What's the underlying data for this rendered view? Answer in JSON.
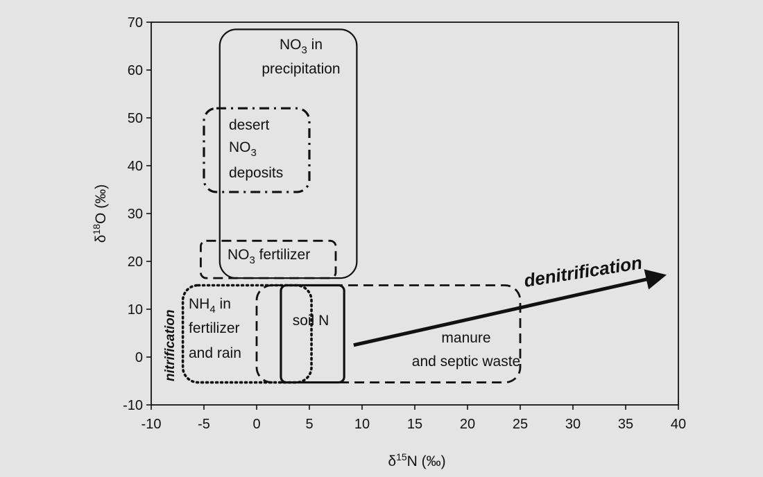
{
  "chart_data": {
    "type": "diagram-scatter",
    "xlabel": "δ15N (‰)",
    "ylabel": "δ18O (‰)",
    "xlim": [
      -10,
      40
    ],
    "ylim": [
      -10,
      70
    ],
    "x_ticks": [
      "-10",
      "-5",
      "0",
      "5",
      "10",
      "15",
      "20",
      "25",
      "30",
      "35",
      "40"
    ],
    "y_ticks": [
      "70",
      "60",
      "50",
      "40",
      "30",
      "20",
      "10",
      "0",
      "-10"
    ],
    "grid": false,
    "regions": [
      {
        "id": "precip",
        "label_lines": [
          "NO3 in",
          "precipitation"
        ],
        "x": [
          -3.5,
          9.5
        ],
        "y": [
          16.5,
          68.5
        ],
        "line_style": "solid"
      },
      {
        "id": "desert",
        "label_lines": [
          "desert",
          "NO3",
          "deposits"
        ],
        "x": [
          -5,
          5
        ],
        "y": [
          34.5,
          52
        ],
        "line_style": "dashdot"
      },
      {
        "id": "fertilizer",
        "label_lines": [
          "NO3 fertilizer"
        ],
        "x": [
          -5.3,
          7.5
        ],
        "y": [
          16.5,
          24.3
        ],
        "line_style": "dashed"
      },
      {
        "id": "nh4",
        "label_lines": [
          "NH4 in",
          "fertilizer",
          "and rain"
        ],
        "x": [
          -7,
          5.2
        ],
        "y": [
          -5.3,
          15
        ],
        "line_style": "dotted"
      },
      {
        "id": "manure",
        "label_lines": [
          "manure",
          "and septic waste"
        ],
        "x": [
          0,
          25
        ],
        "y": [
          -5.3,
          15
        ],
        "line_style": "dashed"
      },
      {
        "id": "soil",
        "label_lines": [
          "soil N"
        ],
        "x": [
          2.3,
          8.3
        ],
        "y": [
          -5.3,
          15
        ],
        "line_style": "solid"
      }
    ],
    "annotations": [
      {
        "text": "denitrification",
        "arrow_from": [
          9.2,
          2.5
        ],
        "arrow_to": [
          38.5,
          17
        ]
      },
      {
        "text": "nitrification",
        "orientation": "vertical"
      }
    ]
  }
}
